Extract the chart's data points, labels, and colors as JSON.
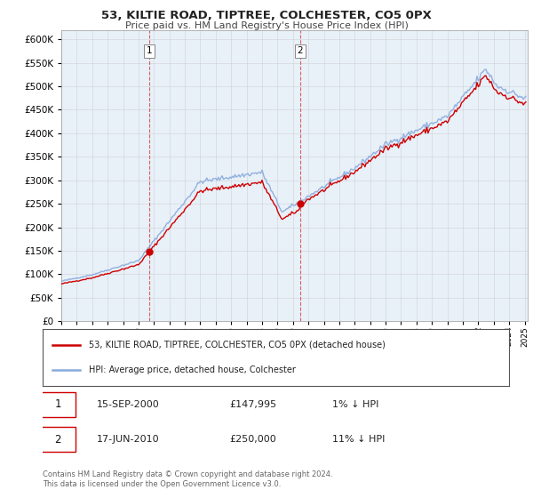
{
  "title": "53, KILTIE ROAD, TIPTREE, COLCHESTER, CO5 0PX",
  "subtitle": "Price paid vs. HM Land Registry's House Price Index (HPI)",
  "hpi_label": "HPI: Average price, detached house, Colchester",
  "price_label": "53, KILTIE ROAD, TIPTREE, COLCHESTER, CO5 0PX (detached house)",
  "footer": "Contains HM Land Registry data © Crown copyright and database right 2024.\nThis data is licensed under the Open Government Licence v3.0.",
  "sale1_date": "15-SEP-2000",
  "sale1_price": 147995,
  "sale1_label": "1% ↓ HPI",
  "sale2_date": "17-JUN-2010",
  "sale2_price": 250000,
  "sale2_label": "11% ↓ HPI",
  "ylim": [
    0,
    620000
  ],
  "yticks": [
    0,
    50000,
    100000,
    150000,
    200000,
    250000,
    300000,
    350000,
    400000,
    450000,
    500000,
    550000,
    600000
  ],
  "price_color": "#cc0000",
  "hpi_color": "#88aadd",
  "bg_color": "#e8f0f8",
  "plot_bg": "#ffffff",
  "grid_color": "#cccccc",
  "sale1_x": 2000.71,
  "sale2_x": 2010.46
}
